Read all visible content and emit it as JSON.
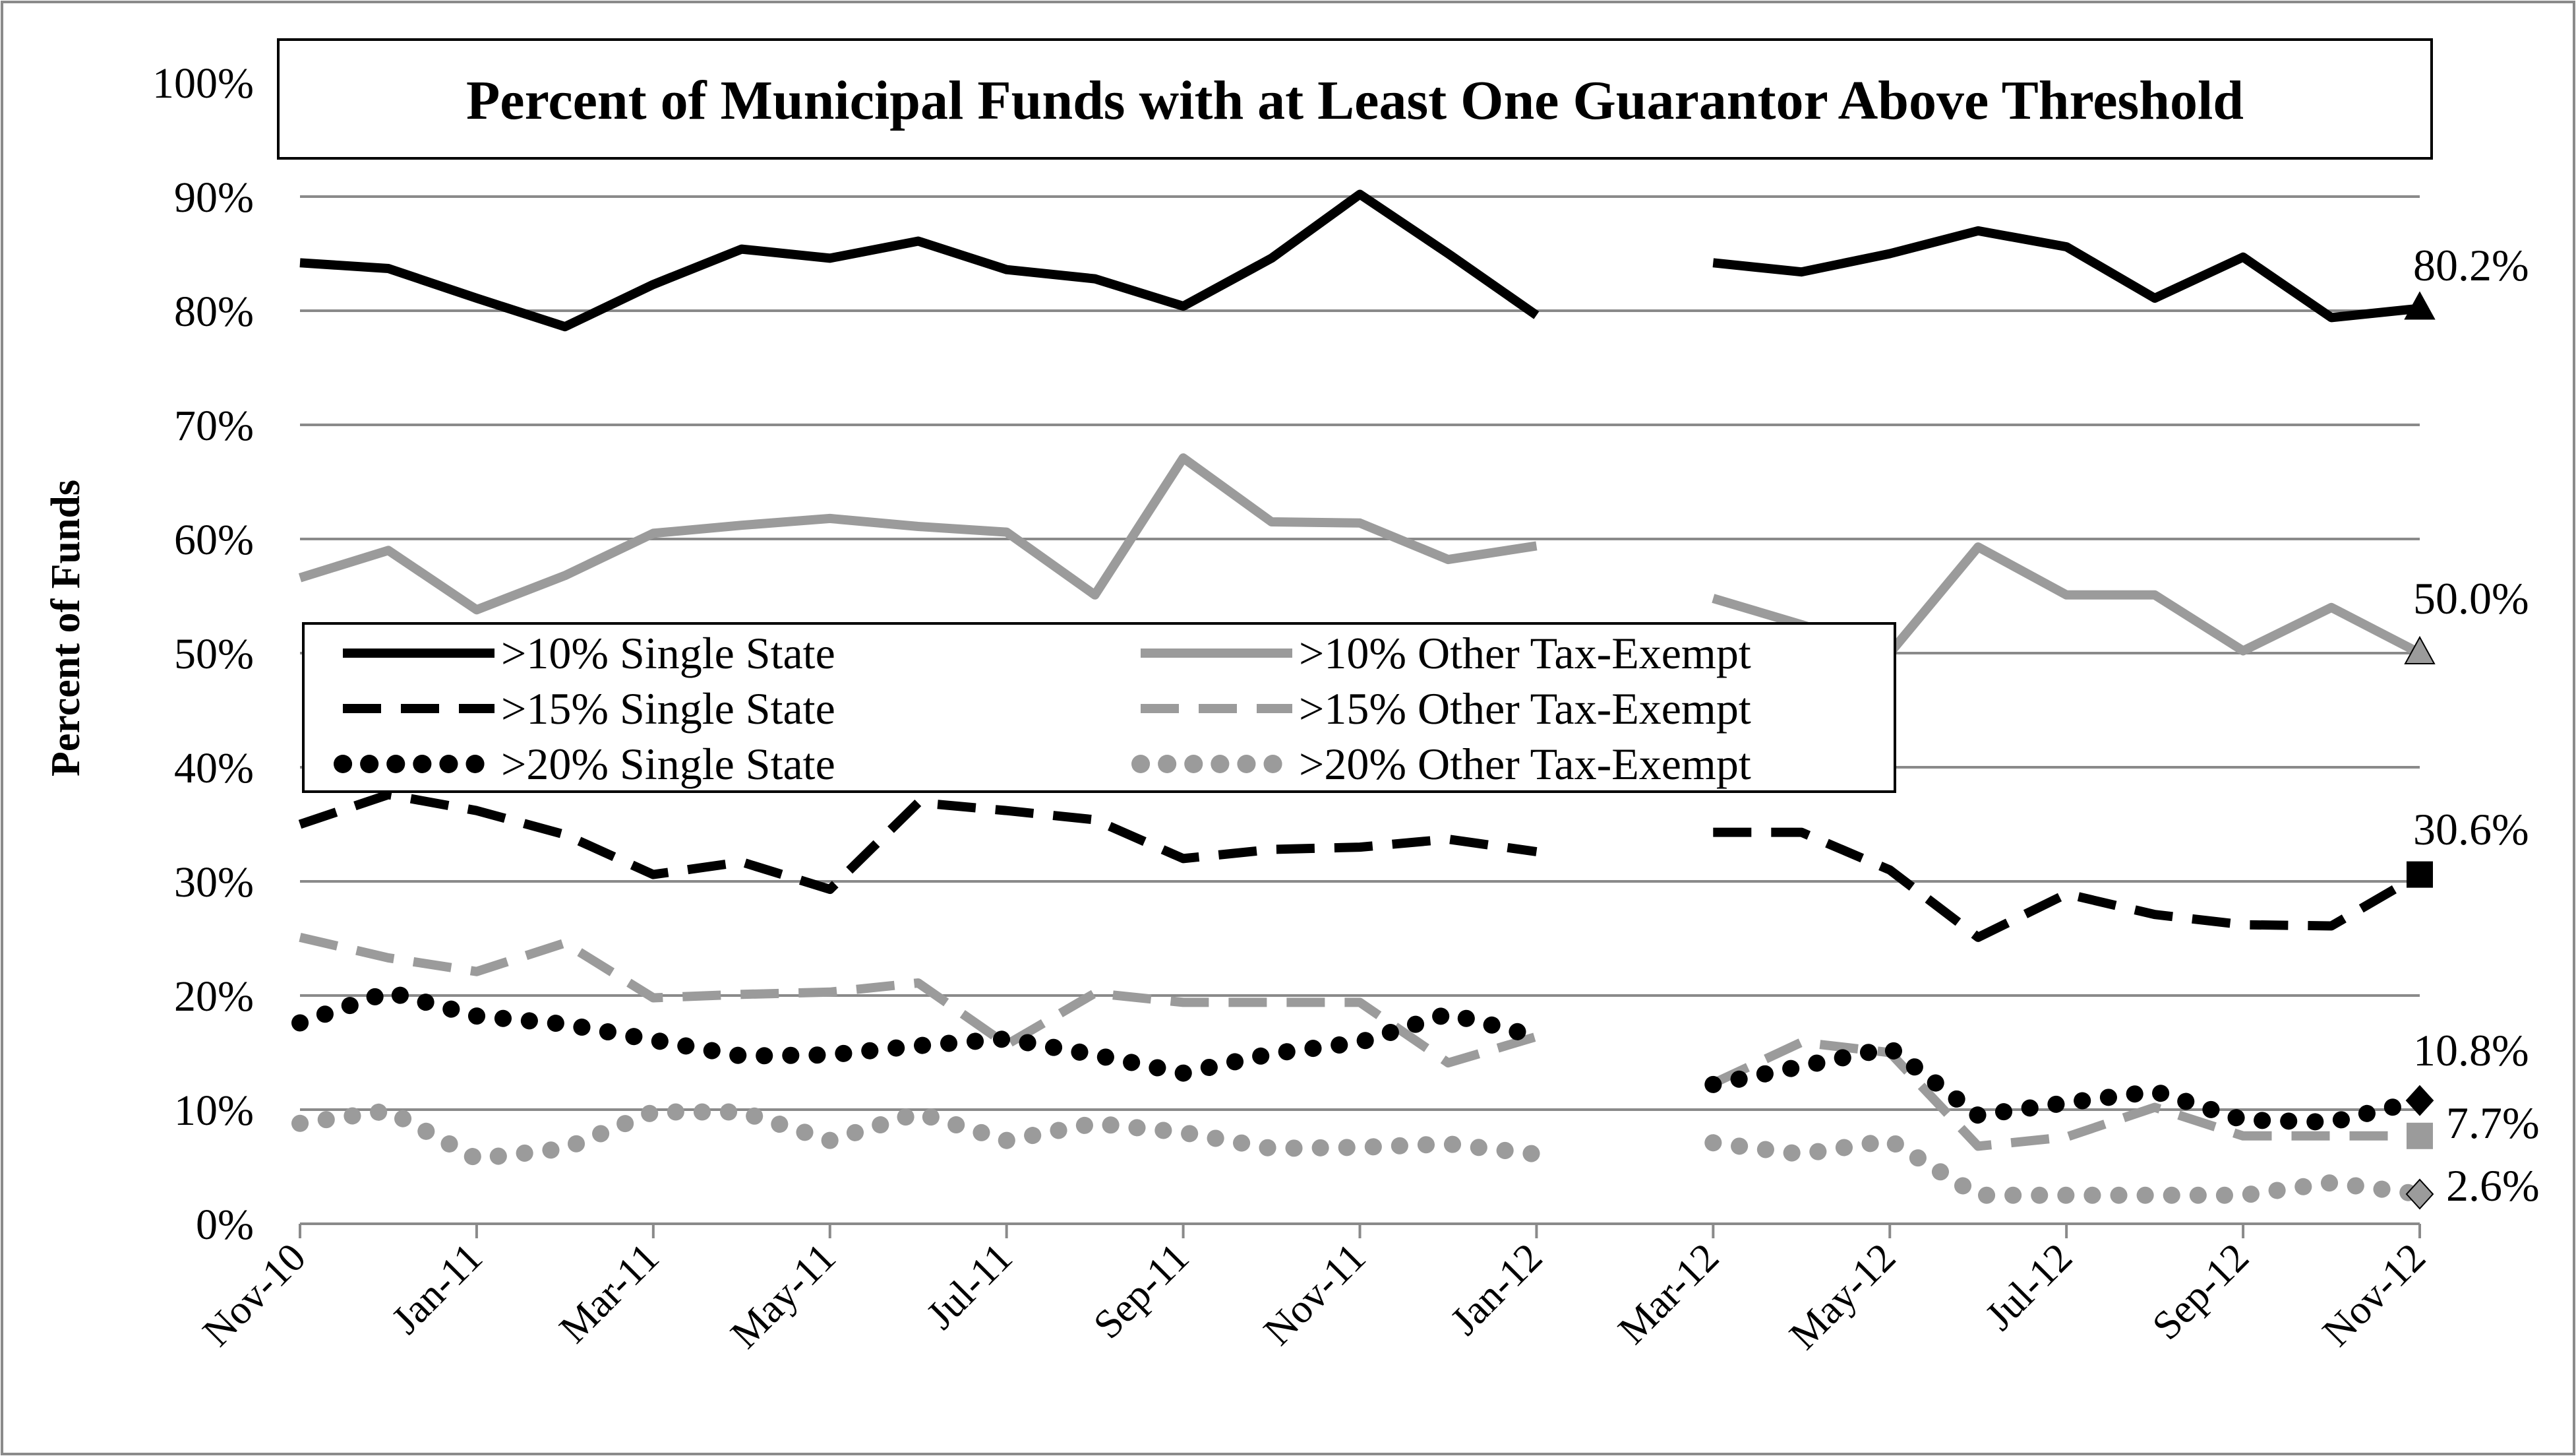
{
  "chart_data": {
    "type": "line",
    "title": "Percent of Municipal Funds with at Least One Guarantor Above Threshold",
    "xlabel": "",
    "ylabel": "Percent of Funds",
    "ylim": [
      0,
      100
    ],
    "yticks": [
      "0%",
      "10%",
      "20%",
      "30%",
      "40%",
      "50%",
      "60%",
      "70%",
      "80%",
      "90%",
      "100%"
    ],
    "x": [
      "Nov-10",
      "Dec-10",
      "Jan-11",
      "Feb-11",
      "Mar-11",
      "Apr-11",
      "May-11",
      "Jun-11",
      "Jul-11",
      "Aug-11",
      "Sep-11",
      "Oct-11",
      "Nov-11",
      "Dec-11",
      "Jan-12",
      "Feb-12",
      "Mar-12",
      "Apr-12",
      "May-12",
      "Jun-12",
      "Jul-12",
      "Aug-12",
      "Sep-12",
      "Oct-12",
      "Nov-12"
    ],
    "xtick_labels": [
      "Nov-10",
      "Jan-11",
      "Mar-11",
      "May-11",
      "Jul-11",
      "Sep-11",
      "Nov-11",
      "Jan-12",
      "Mar-12",
      "May-12",
      "Jul-12",
      "Sep-12",
      "Nov-12"
    ],
    "grid": true,
    "legend_position": "middle-left",
    "series": [
      {
        "name": ">10% Single State",
        "color": "#000000",
        "style": "solid",
        "marker": "triangle",
        "end_label": "80.2%",
        "values": [
          84.2,
          83.7,
          81.1,
          78.6,
          82.3,
          85.4,
          84.6,
          86.1,
          83.6,
          82.8,
          80.4,
          84.6,
          90.2,
          85.0,
          79.6,
          null,
          84.2,
          83.4,
          85.0,
          87.0,
          85.6,
          81.1,
          84.7,
          79.4,
          80.2
        ]
      },
      {
        "name": ">10% Other Tax-Exempt",
        "color": "#9b9b9b",
        "style": "solid",
        "marker": "triangle",
        "end_label": "50.0%",
        "values": [
          56.6,
          59.0,
          53.8,
          56.8,
          60.5,
          61.2,
          61.8,
          61.1,
          60.6,
          55.1,
          67.1,
          61.5,
          61.4,
          58.2,
          59.4,
          null,
          54.8,
          52.5,
          50.0,
          59.3,
          55.1,
          55.1,
          50.2,
          54.0,
          50.0
        ]
      },
      {
        "name": ">15% Single State",
        "color": "#000000",
        "style": "dashed",
        "marker": "square",
        "end_label": "30.6%",
        "values": [
          35.0,
          37.6,
          36.2,
          34.1,
          30.6,
          31.7,
          29.3,
          36.9,
          36.2,
          35.4,
          32.0,
          32.8,
          33.0,
          33.7,
          32.6,
          null,
          34.3,
          34.3,
          31.0,
          25.1,
          28.9,
          27.1,
          26.2,
          26.1,
          30.6
        ]
      },
      {
        "name": ">15% Other Tax-Exempt",
        "color": "#9b9b9b",
        "style": "dashed",
        "marker": "square",
        "end_label": "7.7%",
        "values": [
          25.1,
          23.3,
          22.1,
          24.6,
          19.8,
          20.1,
          20.3,
          21.1,
          15.7,
          20.2,
          19.4,
          19.4,
          19.4,
          14.1,
          16.4,
          null,
          12.3,
          15.9,
          15.0,
          6.8,
          7.6,
          10.2,
          7.7,
          7.7,
          7.7
        ]
      },
      {
        "name": ">20% Single State",
        "color": "#000000",
        "style": "dotted",
        "marker": "diamond",
        "end_label": "10.8%",
        "values": [
          17.6,
          20.3,
          18.2,
          17.5,
          16.1,
          14.7,
          14.8,
          15.6,
          16.2,
          14.8,
          13.2,
          14.9,
          15.9,
          18.4,
          16.4,
          null,
          12.2,
          13.8,
          15.4,
          9.5,
          10.6,
          11.6,
          9.1,
          8.9,
          10.8
        ]
      },
      {
        "name": ">20% Other Tax-Exempt",
        "color": "#9b9b9b",
        "style": "dotted",
        "marker": "diamond",
        "end_label": "2.6%",
        "values": [
          8.8,
          9.9,
          5.7,
          6.6,
          9.8,
          9.8,
          7.3,
          9.7,
          7.3,
          8.8,
          8.0,
          6.6,
          6.7,
          7.0,
          6.1,
          null,
          7.1,
          6.1,
          7.3,
          2.5,
          2.5,
          2.5,
          2.5,
          3.6,
          2.6
        ]
      }
    ]
  }
}
